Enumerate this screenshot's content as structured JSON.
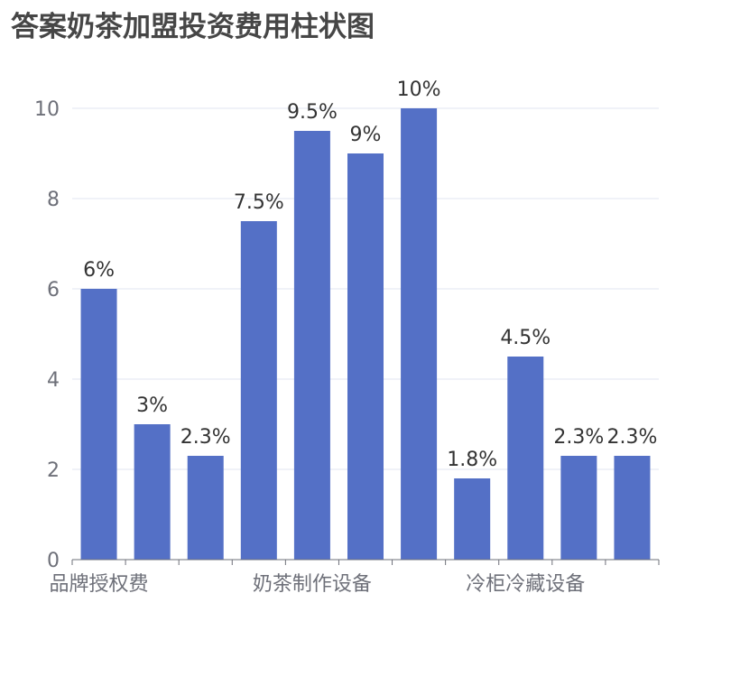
{
  "chart_data": {
    "type": "bar",
    "title": "答案奶茶加盟投资费用柱状图",
    "xlabel": "",
    "ylabel": "",
    "ylim": [
      0,
      10
    ],
    "yticks": [
      0,
      2,
      4,
      6,
      8,
      10
    ],
    "category_labels": [
      "品牌授权费",
      "奶茶制作设备",
      "冷柜冷藏设备"
    ],
    "category_label_bar_index": [
      0,
      4,
      8
    ],
    "values": [
      6,
      3,
      2.3,
      7.5,
      9.5,
      9,
      10,
      1.8,
      4.5,
      2.3,
      2.3
    ],
    "data_labels": [
      "6%",
      "3%",
      "2.3%",
      "7.5%",
      "9.5%",
      "9%",
      "10%",
      "1.8%",
      "4.5%",
      "2.3%",
      "2.3%"
    ],
    "grid": true,
    "legend": "none",
    "colors": {
      "bar": "#5470C6",
      "grid": "#E0E6F1",
      "axis": "#6E7079",
      "label": "#333333",
      "title": "#464646"
    }
  }
}
